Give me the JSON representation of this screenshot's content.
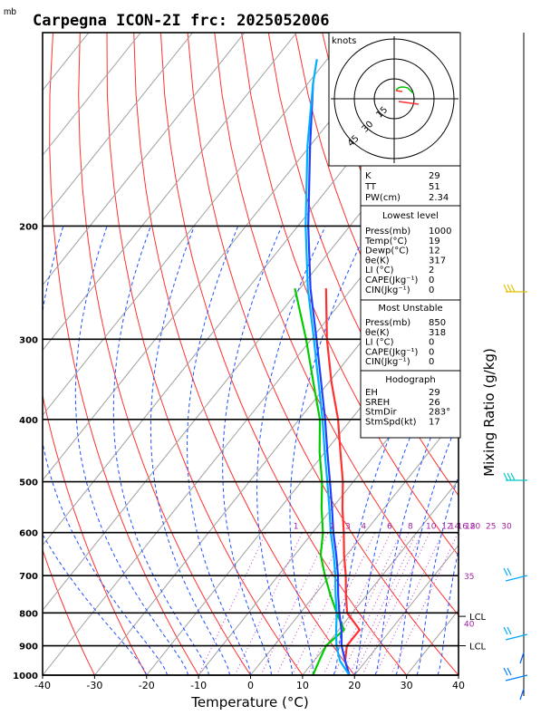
{
  "header": {
    "mb_unit": "mb",
    "title": "Carpegna ICON-2I frc: 2025052006"
  },
  "chart_data": {
    "type": "line",
    "xlabel": "Temperature (°C)",
    "ylabel_right": "Mixing Ratio (g/kg)",
    "xlim": [
      -40,
      40
    ],
    "ylim": [
      1000,
      100
    ],
    "x_ticks": [
      "-40",
      "-30",
      "-20",
      "-10",
      "0",
      "10",
      "20",
      "30",
      "40"
    ],
    "pressure_ticks": [
      "200",
      "300",
      "400",
      "500",
      "600",
      "700",
      "800",
      "900",
      "1000"
    ],
    "mixing_ratio_labels": [
      "1",
      "2",
      "3",
      "4",
      "6",
      "8",
      "10",
      "12",
      "14",
      "16",
      "18",
      "20",
      "25",
      "30",
      "35",
      "40"
    ],
    "lcl_label": "LCL",
    "lcl_pressures": [
      810,
      900
    ],
    "series": [
      {
        "name": "Temperature",
        "color": "#ff3030",
        "points": [
          [
            1000,
            19
          ],
          [
            950,
            16
          ],
          [
            900,
            14
          ],
          [
            850,
            14
          ],
          [
            800,
            9
          ],
          [
            750,
            6
          ],
          [
            700,
            3
          ],
          [
            650,
            -0.5
          ],
          [
            600,
            -4
          ],
          [
            550,
            -8
          ],
          [
            500,
            -12
          ],
          [
            450,
            -17
          ],
          [
            400,
            -22.5
          ],
          [
            350,
            -29.5
          ],
          [
            300,
            -37
          ],
          [
            250,
            -45
          ]
        ]
      },
      {
        "name": "Dewpoint",
        "color": "#00cc00",
        "points": [
          [
            1000,
            12
          ],
          [
            950,
            11
          ],
          [
            900,
            10
          ],
          [
            850,
            11
          ],
          [
            800,
            7
          ],
          [
            750,
            3
          ],
          [
            700,
            -1
          ],
          [
            650,
            -5
          ],
          [
            600,
            -8
          ],
          [
            550,
            -12
          ],
          [
            500,
            -16
          ],
          [
            450,
            -21
          ],
          [
            400,
            -26
          ],
          [
            350,
            -33
          ],
          [
            300,
            -41
          ],
          [
            250,
            -51
          ]
        ]
      },
      {
        "name": "Parcel (virtual)",
        "color": "#2040ff",
        "points": [
          [
            1000,
            19
          ],
          [
            950,
            16
          ],
          [
            900,
            13
          ],
          [
            850,
            10.5
          ],
          [
            800,
            7.5
          ],
          [
            750,
            4.5
          ],
          [
            700,
            1.5
          ],
          [
            650,
            -2
          ],
          [
            600,
            -6
          ],
          [
            550,
            -10
          ],
          [
            500,
            -14.5
          ],
          [
            450,
            -19.5
          ],
          [
            400,
            -25
          ],
          [
            350,
            -31.5
          ],
          [
            300,
            -39
          ],
          [
            250,
            -48
          ],
          [
            200,
            -58
          ],
          [
            150,
            -70
          ],
          [
            120,
            -79
          ]
        ]
      },
      {
        "name": "Parcel",
        "color": "#00b0ff",
        "points": [
          [
            1000,
            19
          ],
          [
            950,
            15
          ],
          [
            900,
            12
          ],
          [
            850,
            9.5
          ],
          [
            800,
            7
          ],
          [
            750,
            4
          ],
          [
            700,
            1
          ],
          [
            650,
            -2.5
          ],
          [
            600,
            -6.5
          ],
          [
            550,
            -10.5
          ],
          [
            500,
            -15
          ],
          [
            450,
            -20
          ],
          [
            400,
            -25.5
          ],
          [
            350,
            -32
          ],
          [
            300,
            -39.5
          ],
          [
            250,
            -48.5
          ],
          [
            200,
            -58.5
          ],
          [
            150,
            -70.5
          ],
          [
            120,
            -79
          ],
          [
            110,
            -82
          ]
        ]
      }
    ]
  },
  "hodograph": {
    "units": "knots",
    "ring_labels": [
      "15",
      "30",
      "45"
    ]
  },
  "indices": {
    "top": [
      {
        "label": "K",
        "value": "29"
      },
      {
        "label": "TT",
        "value": "51"
      },
      {
        "label": "PW(cm)",
        "value": "2.34"
      }
    ],
    "lowest": {
      "heading": "Lowest level",
      "rows": [
        {
          "label": "Press(mb)",
          "value": "1000"
        },
        {
          "label": "Temp(°C)",
          "value": "19"
        },
        {
          "label": "Dewp(°C)",
          "value": "12"
        },
        {
          "label": "θe(K)",
          "value": "317"
        },
        {
          "label": "LI (°C)",
          "value": "2"
        },
        {
          "label": "CAPE(Jkg⁻¹)",
          "value": "0"
        },
        {
          "label": "CIN(Jkg⁻¹)",
          "value": "0"
        }
      ]
    },
    "unstable": {
      "heading": "Most Unstable",
      "rows": [
        {
          "label": "Press(mb)",
          "value": "850"
        },
        {
          "label": "θe(K)",
          "value": "318"
        },
        {
          "label": "LI (°C)",
          "value": "0"
        },
        {
          "label": "CAPE(Jkg⁻¹)",
          "value": "0"
        },
        {
          "label": "CIN(Jkg⁻¹)",
          "value": "0"
        }
      ]
    },
    "hodo": {
      "heading": "Hodograph",
      "rows": [
        {
          "label": "EH",
          "value": "29"
        },
        {
          "label": "SREH",
          "value": "26"
        },
        {
          "label": "StmDir",
          "value": "283°"
        },
        {
          "label": "StmSpd(kt)",
          "value": "17"
        }
      ]
    }
  }
}
